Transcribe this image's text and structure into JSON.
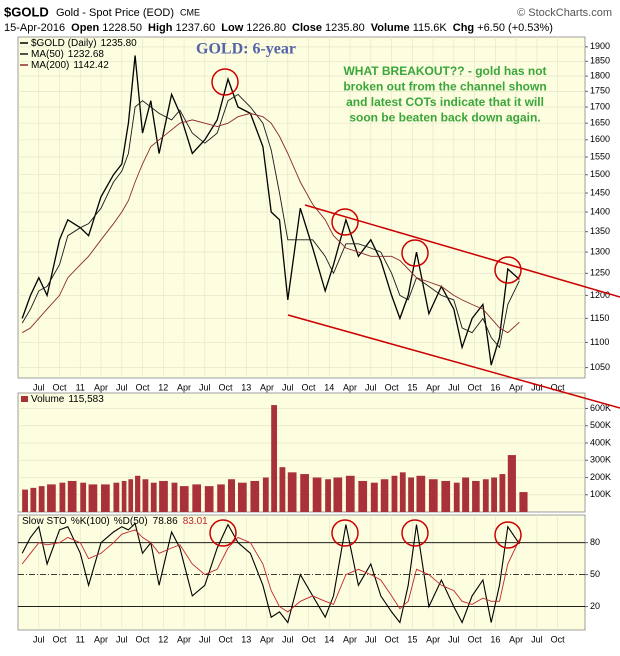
{
  "chart_data": [
    {
      "type": "line",
      "title": "GOLD: 6-year",
      "header": {
        "symbol": "$GOLD",
        "name": "Gold - Spot Price (EOD)",
        "exchange": "CME",
        "copyright": "© StockCharts.com",
        "date": "15-Apr-2016",
        "fields": [
          {
            "label": "Open",
            "value": "1228.50"
          },
          {
            "label": "High",
            "value": "1237.60"
          },
          {
            "label": "Low",
            "value": "1226.80"
          },
          {
            "label": "Close",
            "value": "1235.80"
          },
          {
            "label": "Volume",
            "value": "115.6K"
          },
          {
            "label": "Chg",
            "value": "+6.50 (+0.53%)"
          }
        ]
      },
      "annotation": [
        "WHAT BREAKOUT?? - gold has not",
        "broken out from the channel shown",
        "and latest COTs indicate that it will",
        "soon be beaten back down again."
      ],
      "background": "#fdfde0",
      "grid": true,
      "ylog": true,
      "xlim": [
        2010.25,
        2017.08
      ],
      "ylim": [
        1030,
        1935
      ],
      "yticks": [
        1050,
        1100,
        1150,
        1200,
        1250,
        1300,
        1350,
        1400,
        1450,
        1500,
        1550,
        1600,
        1650,
        1700,
        1750,
        1800,
        1850,
        1900
      ],
      "xticks": [
        {
          "value": 2010.5,
          "label": "Jul"
        },
        {
          "value": 2010.75,
          "label": "Oct"
        },
        {
          "value": 2011,
          "label": "11"
        },
        {
          "value": 2011.25,
          "label": "Apr"
        },
        {
          "value": 2011.5,
          "label": "Jul"
        },
        {
          "value": 2011.75,
          "label": "Oct"
        },
        {
          "value": 2012,
          "label": "12"
        },
        {
          "value": 2012.25,
          "label": "Apr"
        },
        {
          "value": 2012.5,
          "label": "Jul"
        },
        {
          "value": 2012.75,
          "label": "Oct"
        },
        {
          "value": 2013,
          "label": "13"
        },
        {
          "value": 2013.25,
          "label": "Apr"
        },
        {
          "value": 2013.5,
          "label": "Jul"
        },
        {
          "value": 2013.75,
          "label": "Oct"
        },
        {
          "value": 2014,
          "label": "14"
        },
        {
          "value": 2014.25,
          "label": "Apr"
        },
        {
          "value": 2014.5,
          "label": "Jul"
        },
        {
          "value": 2014.75,
          "label": "Oct"
        },
        {
          "value": 2015,
          "label": "15"
        },
        {
          "value": 2015.25,
          "label": "Apr"
        },
        {
          "value": 2015.5,
          "label": "Jul"
        },
        {
          "value": 2015.75,
          "label": "Oct"
        },
        {
          "value": 2016,
          "label": "16"
        },
        {
          "value": 2016.25,
          "label": "Apr"
        },
        {
          "value": 2016.5,
          "label": "Jul"
        },
        {
          "value": 2016.75,
          "label": "Oct"
        }
      ],
      "x": [
        2010.3,
        2010.4,
        2010.5,
        2010.6,
        2010.75,
        2010.85,
        2011.0,
        2011.1,
        2011.25,
        2011.4,
        2011.5,
        2011.58,
        2011.66,
        2011.75,
        2011.85,
        2011.95,
        2012.1,
        2012.2,
        2012.35,
        2012.5,
        2012.65,
        2012.78,
        2012.9,
        2013.05,
        2013.2,
        2013.3,
        2013.4,
        2013.5,
        2013.65,
        2013.8,
        2013.95,
        2014.05,
        2014.2,
        2014.35,
        2014.5,
        2014.62,
        2014.75,
        2014.85,
        2014.95,
        2015.05,
        2015.2,
        2015.35,
        2015.5,
        2015.6,
        2015.72,
        2015.85,
        2015.95,
        2016.05,
        2016.15,
        2016.29
      ],
      "series": [
        {
          "name": "$GOLD (Daily)",
          "last_label": "1235.80",
          "color": "#000000",
          "width": 1.3,
          "values": [
            1150,
            1200,
            1240,
            1200,
            1330,
            1380,
            1360,
            1340,
            1440,
            1500,
            1530,
            1650,
            1870,
            1620,
            1720,
            1560,
            1740,
            1680,
            1560,
            1600,
            1660,
            1790,
            1700,
            1680,
            1580,
            1400,
            1380,
            1190,
            1410,
            1310,
            1210,
            1270,
            1380,
            1290,
            1330,
            1280,
            1200,
            1150,
            1200,
            1300,
            1160,
            1220,
            1170,
            1090,
            1150,
            1180,
            1055,
            1110,
            1260,
            1236
          ]
        },
        {
          "name": "MA(50)",
          "last_label": "1232.68",
          "color": "#1a1a1a",
          "width": 0.9,
          "values": [
            1140,
            1170,
            1210,
            1220,
            1270,
            1340,
            1360,
            1370,
            1410,
            1480,
            1510,
            1560,
            1700,
            1720,
            1700,
            1680,
            1660,
            1690,
            1620,
            1590,
            1620,
            1720,
            1740,
            1700,
            1650,
            1570,
            1450,
            1330,
            1330,
            1330,
            1290,
            1250,
            1320,
            1320,
            1310,
            1300,
            1250,
            1200,
            1190,
            1240,
            1220,
            1200,
            1190,
            1130,
            1120,
            1150,
            1110,
            1090,
            1180,
            1233
          ]
        },
        {
          "name": "MA(200)",
          "last_label": "1142.42",
          "color": "#8b2a2a",
          "width": 0.9,
          "values": [
            1120,
            1130,
            1150,
            1170,
            1200,
            1240,
            1270,
            1290,
            1330,
            1370,
            1400,
            1430,
            1480,
            1530,
            1580,
            1600,
            1630,
            1650,
            1660,
            1650,
            1640,
            1650,
            1670,
            1680,
            1670,
            1650,
            1610,
            1560,
            1480,
            1420,
            1380,
            1340,
            1310,
            1300,
            1290,
            1290,
            1290,
            1280,
            1260,
            1240,
            1230,
            1220,
            1200,
            1190,
            1180,
            1170,
            1150,
            1130,
            1120,
            1142
          ]
        }
      ]
    },
    {
      "type": "bar",
      "background": "#fdfde0",
      "grid": true,
      "xlim": [
        2010.25,
        2017.08
      ],
      "ylim": [
        0,
        690000
      ],
      "yticks": [
        {
          "value": 100000,
          "label": "100K"
        },
        {
          "value": 200000,
          "label": "200K"
        },
        {
          "value": 300000,
          "label": "300K"
        },
        {
          "value": 400000,
          "label": "400K"
        },
        {
          "value": 500000,
          "label": "500K"
        },
        {
          "value": 600000,
          "label": "600K"
        }
      ],
      "x": [
        2010.3,
        2010.4,
        2010.5,
        2010.6,
        2010.75,
        2010.85,
        2011.0,
        2011.1,
        2011.25,
        2011.4,
        2011.5,
        2011.58,
        2011.66,
        2011.75,
        2011.85,
        2011.95,
        2012.1,
        2012.2,
        2012.35,
        2012.5,
        2012.65,
        2012.78,
        2012.9,
        2013.05,
        2013.2,
        2013.3,
        2013.4,
        2013.5,
        2013.65,
        2013.8,
        2013.95,
        2014.05,
        2014.2,
        2014.35,
        2014.5,
        2014.62,
        2014.75,
        2014.85,
        2014.95,
        2015.05,
        2015.2,
        2015.35,
        2015.5,
        2015.6,
        2015.72,
        2015.85,
        2015.95,
        2016.05,
        2016.15,
        2016.29
      ],
      "series": [
        {
          "name": "Volume",
          "last_label": "115,583",
          "color": "#a8313a",
          "values": [
            130000,
            140000,
            150000,
            160000,
            170000,
            180000,
            170000,
            160000,
            160000,
            170000,
            180000,
            190000,
            210000,
            190000,
            170000,
            180000,
            170000,
            150000,
            160000,
            150000,
            160000,
            190000,
            170000,
            180000,
            200000,
            620000,
            260000,
            230000,
            220000,
            200000,
            190000,
            200000,
            210000,
            180000,
            170000,
            190000,
            210000,
            230000,
            200000,
            210000,
            190000,
            180000,
            170000,
            200000,
            180000,
            190000,
            200000,
            220000,
            330000,
            115583
          ]
        }
      ]
    },
    {
      "type": "line",
      "title": "Slow STO",
      "background": "#fdfde0",
      "grid": true,
      "xlim": [
        2010.25,
        2017.08
      ],
      "ylim": [
        -2,
        106
      ],
      "yticks": [
        20,
        50,
        80
      ],
      "xticks": [
        {
          "value": 2010.5,
          "label": "Jul"
        },
        {
          "value": 2010.75,
          "label": "Oct"
        },
        {
          "value": 2011,
          "label": "11"
        },
        {
          "value": 2011.25,
          "label": "Apr"
        },
        {
          "value": 2011.5,
          "label": "Jul"
        },
        {
          "value": 2011.75,
          "label": "Oct"
        },
        {
          "value": 2012,
          "label": "12"
        },
        {
          "value": 2012.25,
          "label": "Apr"
        },
        {
          "value": 2012.5,
          "label": "Jul"
        },
        {
          "value": 2012.75,
          "label": "Oct"
        },
        {
          "value": 2013,
          "label": "13"
        },
        {
          "value": 2013.25,
          "label": "Apr"
        },
        {
          "value": 2013.5,
          "label": "Jul"
        },
        {
          "value": 2013.75,
          "label": "Oct"
        },
        {
          "value": 2014,
          "label": "14"
        },
        {
          "value": 2014.25,
          "label": "Apr"
        },
        {
          "value": 2014.5,
          "label": "Jul"
        },
        {
          "value": 2014.75,
          "label": "Oct"
        },
        {
          "value": 2015,
          "label": "15"
        },
        {
          "value": 2015.25,
          "label": "Apr"
        },
        {
          "value": 2015.5,
          "label": "Jul"
        },
        {
          "value": 2015.75,
          "label": "Oct"
        },
        {
          "value": 2016,
          "label": "16"
        },
        {
          "value": 2016.25,
          "label": "Apr"
        },
        {
          "value": 2016.5,
          "label": "Jul"
        },
        {
          "value": 2016.75,
          "label": "Oct"
        }
      ],
      "x": [
        2010.3,
        2010.4,
        2010.5,
        2010.6,
        2010.75,
        2010.85,
        2011.0,
        2011.1,
        2011.25,
        2011.4,
        2011.5,
        2011.58,
        2011.66,
        2011.75,
        2011.85,
        2011.95,
        2012.1,
        2012.2,
        2012.35,
        2012.5,
        2012.65,
        2012.78,
        2012.9,
        2013.05,
        2013.2,
        2013.3,
        2013.4,
        2013.5,
        2013.65,
        2013.8,
        2013.95,
        2014.05,
        2014.2,
        2014.35,
        2014.5,
        2014.62,
        2014.75,
        2014.85,
        2014.95,
        2015.05,
        2015.2,
        2015.35,
        2015.5,
        2015.6,
        2015.72,
        2015.85,
        2015.95,
        2016.05,
        2016.15,
        2016.29
      ],
      "series": [
        {
          "name": "%K(100)",
          "last_label": "78.86",
          "color": "#000000",
          "width": 1.1,
          "values": [
            70,
            85,
            95,
            60,
            92,
            95,
            70,
            40,
            80,
            90,
            95,
            92,
            98,
            70,
            80,
            40,
            90,
            75,
            30,
            40,
            75,
            97,
            80,
            70,
            40,
            10,
            15,
            5,
            50,
            30,
            10,
            30,
            97,
            40,
            60,
            30,
            15,
            5,
            40,
            97,
            20,
            45,
            20,
            5,
            30,
            45,
            5,
            40,
            95,
            78.86
          ]
        },
        {
          "name": "%D(50)",
          "last_label": "83.01",
          "color": "#c0282d",
          "width": 0.9,
          "values": [
            60,
            70,
            80,
            78,
            80,
            85,
            80,
            65,
            70,
            80,
            88,
            90,
            92,
            85,
            80,
            70,
            75,
            78,
            60,
            50,
            55,
            75,
            85,
            80,
            60,
            35,
            20,
            15,
            25,
            30,
            25,
            22,
            50,
            55,
            50,
            45,
            30,
            18,
            25,
            55,
            50,
            40,
            35,
            25,
            22,
            28,
            25,
            25,
            60,
            83.01
          ]
        }
      ]
    }
  ]
}
